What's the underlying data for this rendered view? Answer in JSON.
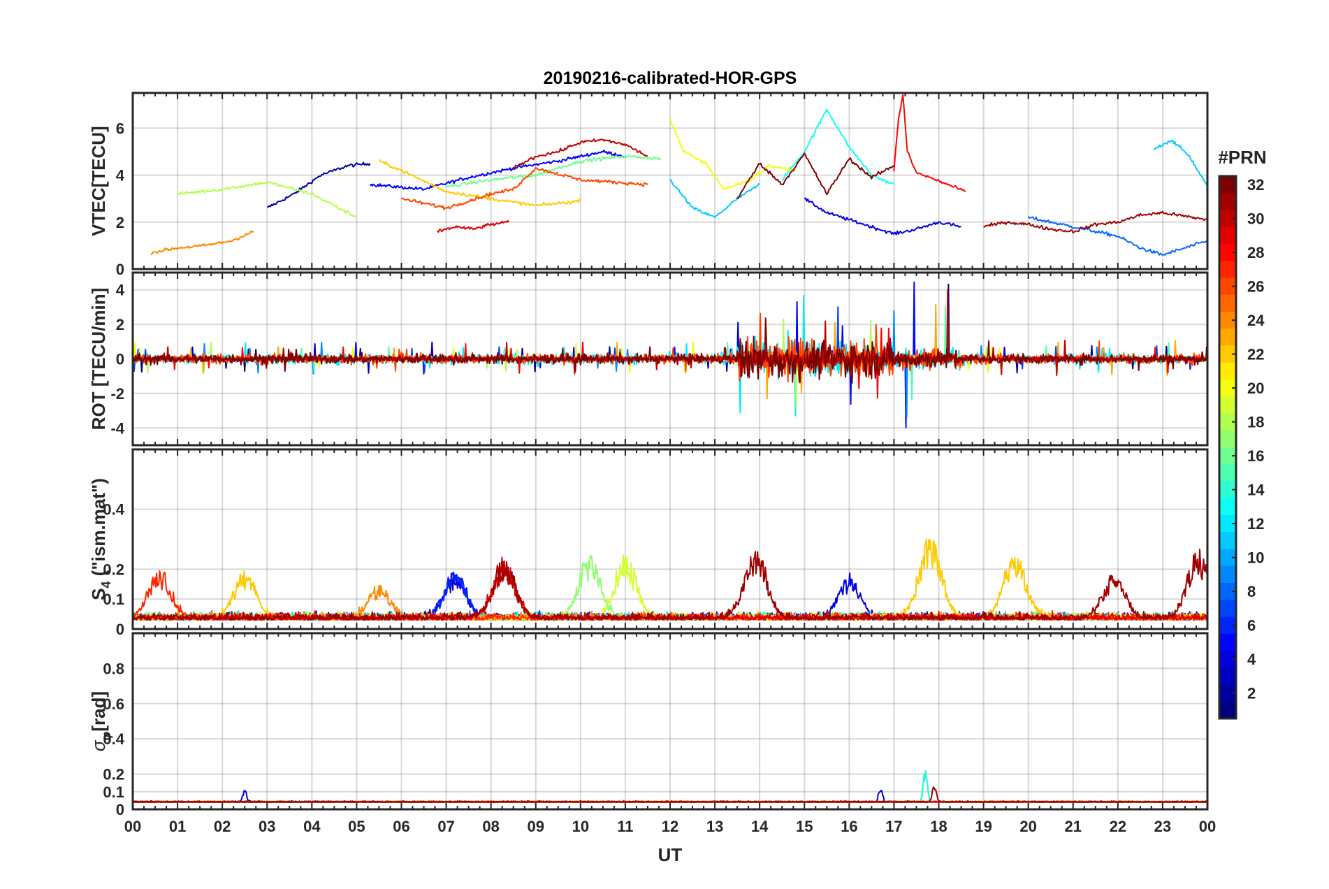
{
  "title": "20190216-calibrated-HOR-GPS",
  "x_axis": {
    "label": "UT",
    "range_hours": [
      0,
      24
    ],
    "tick_labels": [
      "00",
      "01",
      "02",
      "03",
      "04",
      "05",
      "06",
      "07",
      "08",
      "09",
      "10",
      "11",
      "12",
      "13",
      "14",
      "15",
      "16",
      "17",
      "18",
      "19",
      "20",
      "21",
      "22",
      "23",
      "00"
    ]
  },
  "colorbar": {
    "label": "#PRN",
    "range": [
      1,
      32
    ],
    "tick_values": [
      2,
      4,
      6,
      8,
      10,
      12,
      14,
      16,
      18,
      20,
      22,
      24,
      26,
      28,
      30,
      32
    ],
    "tick_labels": [
      "2",
      "4",
      "6",
      "8",
      "10",
      "12",
      "14",
      "16",
      "18",
      "20",
      "22",
      "24",
      "26",
      "28",
      "30",
      "32"
    ],
    "colormap": "jet"
  },
  "chart_data": [
    {
      "type": "line",
      "panel": "VTEC",
      "ylabel": "VTEC[TECU]",
      "ylim": [
        0,
        7.5
      ],
      "yticks": [
        0,
        2,
        4,
        6
      ],
      "ytick_labels": [
        "0",
        "2",
        "4",
        "6"
      ],
      "grid": true,
      "series": [
        {
          "prn": 2,
          "x": [
            3.0,
            3.6,
            4.2,
            4.8,
            5.3
          ],
          "y": [
            2.6,
            3.2,
            4.0,
            4.4,
            4.5
          ]
        },
        {
          "prn": 5,
          "x": [
            5.3,
            6.5,
            7.5,
            8.5,
            9.5,
            10.5,
            11.0
          ],
          "y": [
            3.6,
            3.4,
            3.9,
            4.3,
            4.6,
            5.0,
            4.8
          ]
        },
        {
          "prn": 4,
          "x": [
            15.0,
            15.5,
            16.0,
            16.5,
            17.0,
            17.5,
            18.0,
            18.5
          ],
          "y": [
            3.0,
            2.4,
            2.1,
            1.8,
            1.5,
            1.7,
            2.0,
            1.8
          ]
        },
        {
          "prn": 8,
          "x": [
            20.0,
            21.0,
            22.0,
            22.5,
            23.0,
            23.5,
            24.0
          ],
          "y": [
            2.2,
            1.8,
            1.4,
            0.9,
            0.6,
            0.9,
            1.2
          ]
        },
        {
          "prn": 11,
          "x": [
            12.0,
            12.5,
            13.0,
            13.5,
            14.0
          ],
          "y": [
            3.8,
            2.6,
            2.2,
            3.0,
            3.6
          ]
        },
        {
          "prn": 11,
          "x": [
            22.8,
            23.2,
            23.6,
            24.0
          ],
          "y": [
            5.1,
            5.5,
            4.8,
            3.5
          ]
        },
        {
          "prn": 13,
          "x": [
            14.5,
            15.0,
            15.5,
            16.0,
            16.5,
            17.0
          ],
          "y": [
            3.8,
            5.0,
            6.8,
            5.2,
            4.0,
            3.6
          ]
        },
        {
          "prn": 16,
          "x": [
            7.0,
            8.0,
            9.0,
            10.0,
            11.0,
            11.8
          ],
          "y": [
            3.5,
            3.8,
            4.0,
            4.6,
            4.8,
            4.7
          ]
        },
        {
          "prn": 18,
          "x": [
            1.0,
            2.0,
            3.0,
            4.0,
            5.0
          ],
          "y": [
            3.2,
            3.4,
            3.7,
            3.2,
            2.2
          ]
        },
        {
          "prn": 20,
          "x": [
            12.0,
            12.3,
            12.8,
            13.2,
            13.8,
            14.2,
            14.8
          ],
          "y": [
            6.4,
            5.0,
            4.5,
            3.4,
            3.8,
            4.4,
            4.2
          ]
        },
        {
          "prn": 22,
          "x": [
            5.5,
            6.0,
            7.0,
            8.0,
            9.0,
            10.0
          ],
          "y": [
            4.6,
            4.2,
            3.3,
            3.0,
            2.7,
            2.9
          ]
        },
        {
          "prn": 24,
          "x": [
            0.4,
            1.0,
            1.6,
            2.2,
            2.7
          ],
          "y": [
            0.7,
            0.9,
            1.0,
            1.2,
            1.6
          ]
        },
        {
          "prn": 26,
          "x": [
            6.0,
            7.0,
            8.0,
            8.5,
            9.0,
            10.0,
            11.5
          ],
          "y": [
            3.0,
            2.6,
            3.2,
            3.4,
            4.3,
            3.8,
            3.6
          ]
        },
        {
          "prn": 28,
          "x": [
            17.0,
            17.1,
            17.2,
            17.3,
            17.5,
            17.8,
            18.2,
            18.6
          ],
          "y": [
            4.2,
            6.4,
            7.4,
            5.0,
            4.1,
            3.9,
            3.6,
            3.3
          ]
        },
        {
          "prn": 29,
          "x": [
            6.8,
            7.2,
            7.6,
            8.0,
            8.4
          ],
          "y": [
            1.6,
            1.8,
            1.7,
            1.9,
            2.0
          ]
        },
        {
          "prn": 30,
          "x": [
            8.5,
            9.0,
            9.5,
            10.0,
            10.5,
            11.0,
            11.5
          ],
          "y": [
            4.3,
            4.8,
            5.0,
            5.4,
            5.5,
            5.3,
            4.8
          ]
        },
        {
          "prn": 31,
          "x": [
            19.0,
            19.5,
            20.0,
            20.5,
            21.0,
            21.5,
            22.0,
            22.5,
            23.0,
            24.0
          ],
          "y": [
            1.8,
            2.0,
            1.9,
            1.7,
            1.6,
            1.9,
            2.0,
            2.3,
            2.4,
            2.1
          ]
        },
        {
          "prn": 32,
          "x": [
            13.5,
            14.0,
            14.5,
            15.0,
            15.5,
            16.0,
            16.5,
            17.0
          ],
          "y": [
            3.0,
            4.5,
            3.6,
            4.9,
            3.2,
            4.7,
            3.9,
            4.4
          ]
        }
      ]
    },
    {
      "type": "line",
      "panel": "ROT",
      "ylabel": "ROT [TECU/min]",
      "ylim": [
        -5,
        5
      ],
      "yticks": [
        -4,
        -2,
        0,
        2,
        4
      ],
      "ytick_labels": [
        "-4",
        "-2",
        "0",
        "2",
        "4"
      ],
      "grid": true,
      "bursts": [
        {
          "x_start": 0.0,
          "x_end": 13.5,
          "amplitude": 0.5,
          "peak": 1.0
        },
        {
          "x_start": 13.5,
          "x_end": 15.0,
          "amplitude": 2.0,
          "peak": 3.8
        },
        {
          "x_start": 15.0,
          "x_end": 17.0,
          "amplitude": 1.8,
          "peak": 3.2
        },
        {
          "x_start": 17.0,
          "x_end": 18.5,
          "amplitude": 1.0,
          "peak": 4.6
        },
        {
          "x_start": 18.5,
          "x_end": 24.0,
          "amplitude": 0.5,
          "peak": 1.1
        }
      ],
      "highlight_prns": [
        32,
        12,
        4,
        13,
        26
      ]
    },
    {
      "type": "line",
      "panel": "S4",
      "ylabel": "S_4 (\"ism.mat\")",
      "ylim": [
        0,
        0.6
      ],
      "yticks": [
        0,
        0.1,
        0.2,
        0.4
      ],
      "ytick_labels": [
        "0",
        "0.1",
        "0.2",
        "0.4"
      ],
      "grid": true,
      "baseline": 0.03,
      "peaks": [
        {
          "x": 0.6,
          "y": 0.2,
          "prn": 26
        },
        {
          "x": 2.5,
          "y": 0.19,
          "prn": 22
        },
        {
          "x": 5.5,
          "y": 0.14,
          "prn": 24
        },
        {
          "x": 7.2,
          "y": 0.19,
          "prn": 5
        },
        {
          "x": 8.3,
          "y": 0.23,
          "prn": 30
        },
        {
          "x": 10.2,
          "y": 0.24,
          "prn": 16
        },
        {
          "x": 11.0,
          "y": 0.24,
          "prn": 20
        },
        {
          "x": 13.9,
          "y": 0.27,
          "prn": 32
        },
        {
          "x": 16.0,
          "y": 0.17,
          "prn": 4
        },
        {
          "x": 17.8,
          "y": 0.31,
          "prn": 22
        },
        {
          "x": 19.7,
          "y": 0.26,
          "prn": 22
        },
        {
          "x": 21.9,
          "y": 0.18,
          "prn": 31
        },
        {
          "x": 23.8,
          "y": 0.26,
          "prn": 32
        }
      ]
    },
    {
      "type": "line",
      "panel": "sigma_phi",
      "ylabel": "σ_φ[rad]",
      "ylim": [
        0,
        1.0
      ],
      "yticks": [
        0,
        0.1,
        0.2,
        0.4,
        0.6,
        0.8
      ],
      "ytick_labels": [
        "0",
        "0.1",
        "0.2",
        "0.4",
        "0.6",
        "0.8"
      ],
      "grid": true,
      "baseline": 0.04,
      "peaks": [
        {
          "x": 2.5,
          "y": 0.12,
          "prn": 4
        },
        {
          "x": 16.7,
          "y": 0.13,
          "prn": 4
        },
        {
          "x": 17.7,
          "y": 0.26,
          "prn": 13
        },
        {
          "x": 17.9,
          "y": 0.15,
          "prn": 32
        }
      ]
    }
  ]
}
